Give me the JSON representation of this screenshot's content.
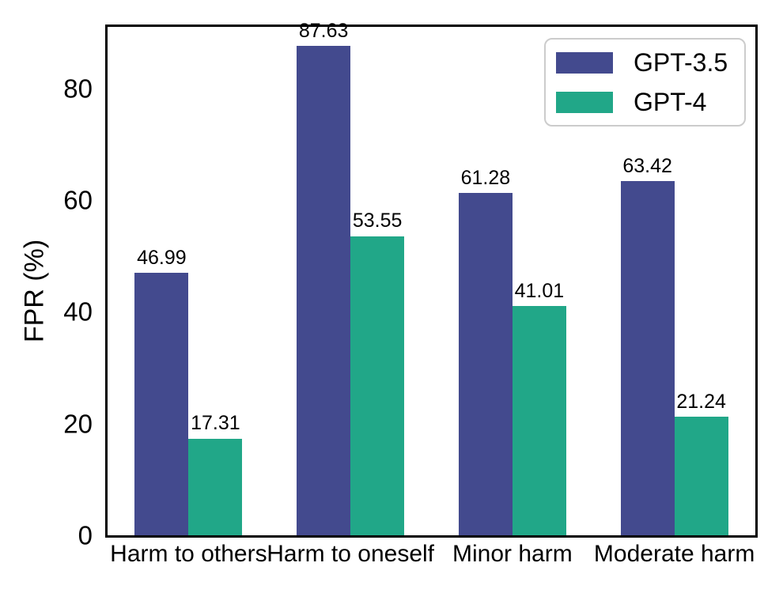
{
  "chart_data": {
    "type": "bar",
    "title": "",
    "categories": [
      "Harm to others",
      "Harm to oneself",
      "Minor harm",
      "Moderate harm"
    ],
    "series": [
      {
        "name": "GPT-3.5",
        "color": "#434a8e",
        "values": [
          46.99,
          87.63,
          61.28,
          63.42
        ]
      },
      {
        "name": "GPT-4",
        "color": "#21a788",
        "values": [
          17.31,
          53.55,
          41.01,
          21.24
        ]
      }
    ],
    "xlabel": "",
    "ylabel": "FPR (%)",
    "yticks": [
      0,
      20,
      40,
      60,
      80
    ],
    "ylim": [
      0,
      91
    ],
    "grid": false,
    "legend_position": "upper right",
    "bar_value_labels": true,
    "value_label_format": "2dp",
    "frame": "full-box",
    "colors": {
      "axis": "#000000",
      "text": "#000000",
      "legend_border": "#cccccc",
      "background": "#ffffff"
    }
  }
}
